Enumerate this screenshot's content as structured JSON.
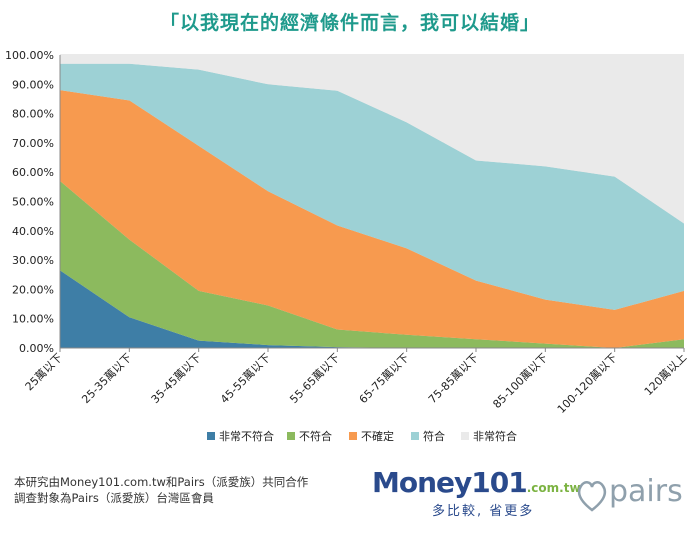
{
  "title": "「以我現在的經濟條件而言，我可以結婚」",
  "footnote": {
    "line1": "本研究由Money101.com.tw和Pairs（派愛族）共同合作",
    "line2": "調查對象為Pairs（派愛族）台灣區會員"
  },
  "logos": {
    "money101_brand": "Money101",
    "money101_domain": ".com.tw",
    "money101_tagline": "多比較, 省更多",
    "pairs_brand": "pairs"
  },
  "chart_data": {
    "type": "area",
    "stacked": true,
    "ylim": [
      0,
      100
    ],
    "yticks": [
      "0.00%",
      "10.00%",
      "20.00%",
      "30.00%",
      "40.00%",
      "50.00%",
      "60.00%",
      "70.00%",
      "80.00%",
      "90.00%",
      "100.00%"
    ],
    "categories": [
      "25萬以下",
      "25-35萬以下",
      "35-45萬以下",
      "45-55萬以下",
      "55-65萬以下",
      "65-75萬以下",
      "75-85萬以下",
      "85-100萬以下",
      "100-120萬以下",
      "120萬以上"
    ],
    "legend_position": "bottom",
    "grid": true,
    "series": [
      {
        "name": "非常不符合",
        "color": "#3e7ea6",
        "values": [
          26.5,
          10.5,
          2.5,
          1.0,
          0.3,
          0.0,
          0.0,
          0.0,
          0.0,
          0.0
        ]
      },
      {
        "name": "不符合",
        "color": "#8cba5e",
        "values": [
          30.5,
          26.5,
          17.0,
          13.5,
          6.0,
          4.5,
          3.0,
          1.5,
          0.0,
          3.0
        ]
      },
      {
        "name": "不確定",
        "color": "#f79a4f",
        "values": [
          31.0,
          47.5,
          49.5,
          39.0,
          35.5,
          29.5,
          20.0,
          15.0,
          13.0,
          16.5
        ]
      },
      {
        "name": "符合",
        "color": "#9dd1d5",
        "values": [
          9.0,
          12.5,
          26.0,
          36.5,
          46.0,
          43.0,
          41.0,
          45.5,
          45.5,
          23.0
        ]
      },
      {
        "name": "非常符合",
        "color": "#eaeaea",
        "values": [
          3.0,
          3.0,
          5.0,
          10.0,
          12.2,
          23.0,
          36.0,
          38.0,
          41.5,
          57.5
        ]
      }
    ]
  },
  "colors": {
    "title": "#1f9a8c",
    "plot_background": "#eaeaea",
    "gridline": "#ffffff"
  }
}
